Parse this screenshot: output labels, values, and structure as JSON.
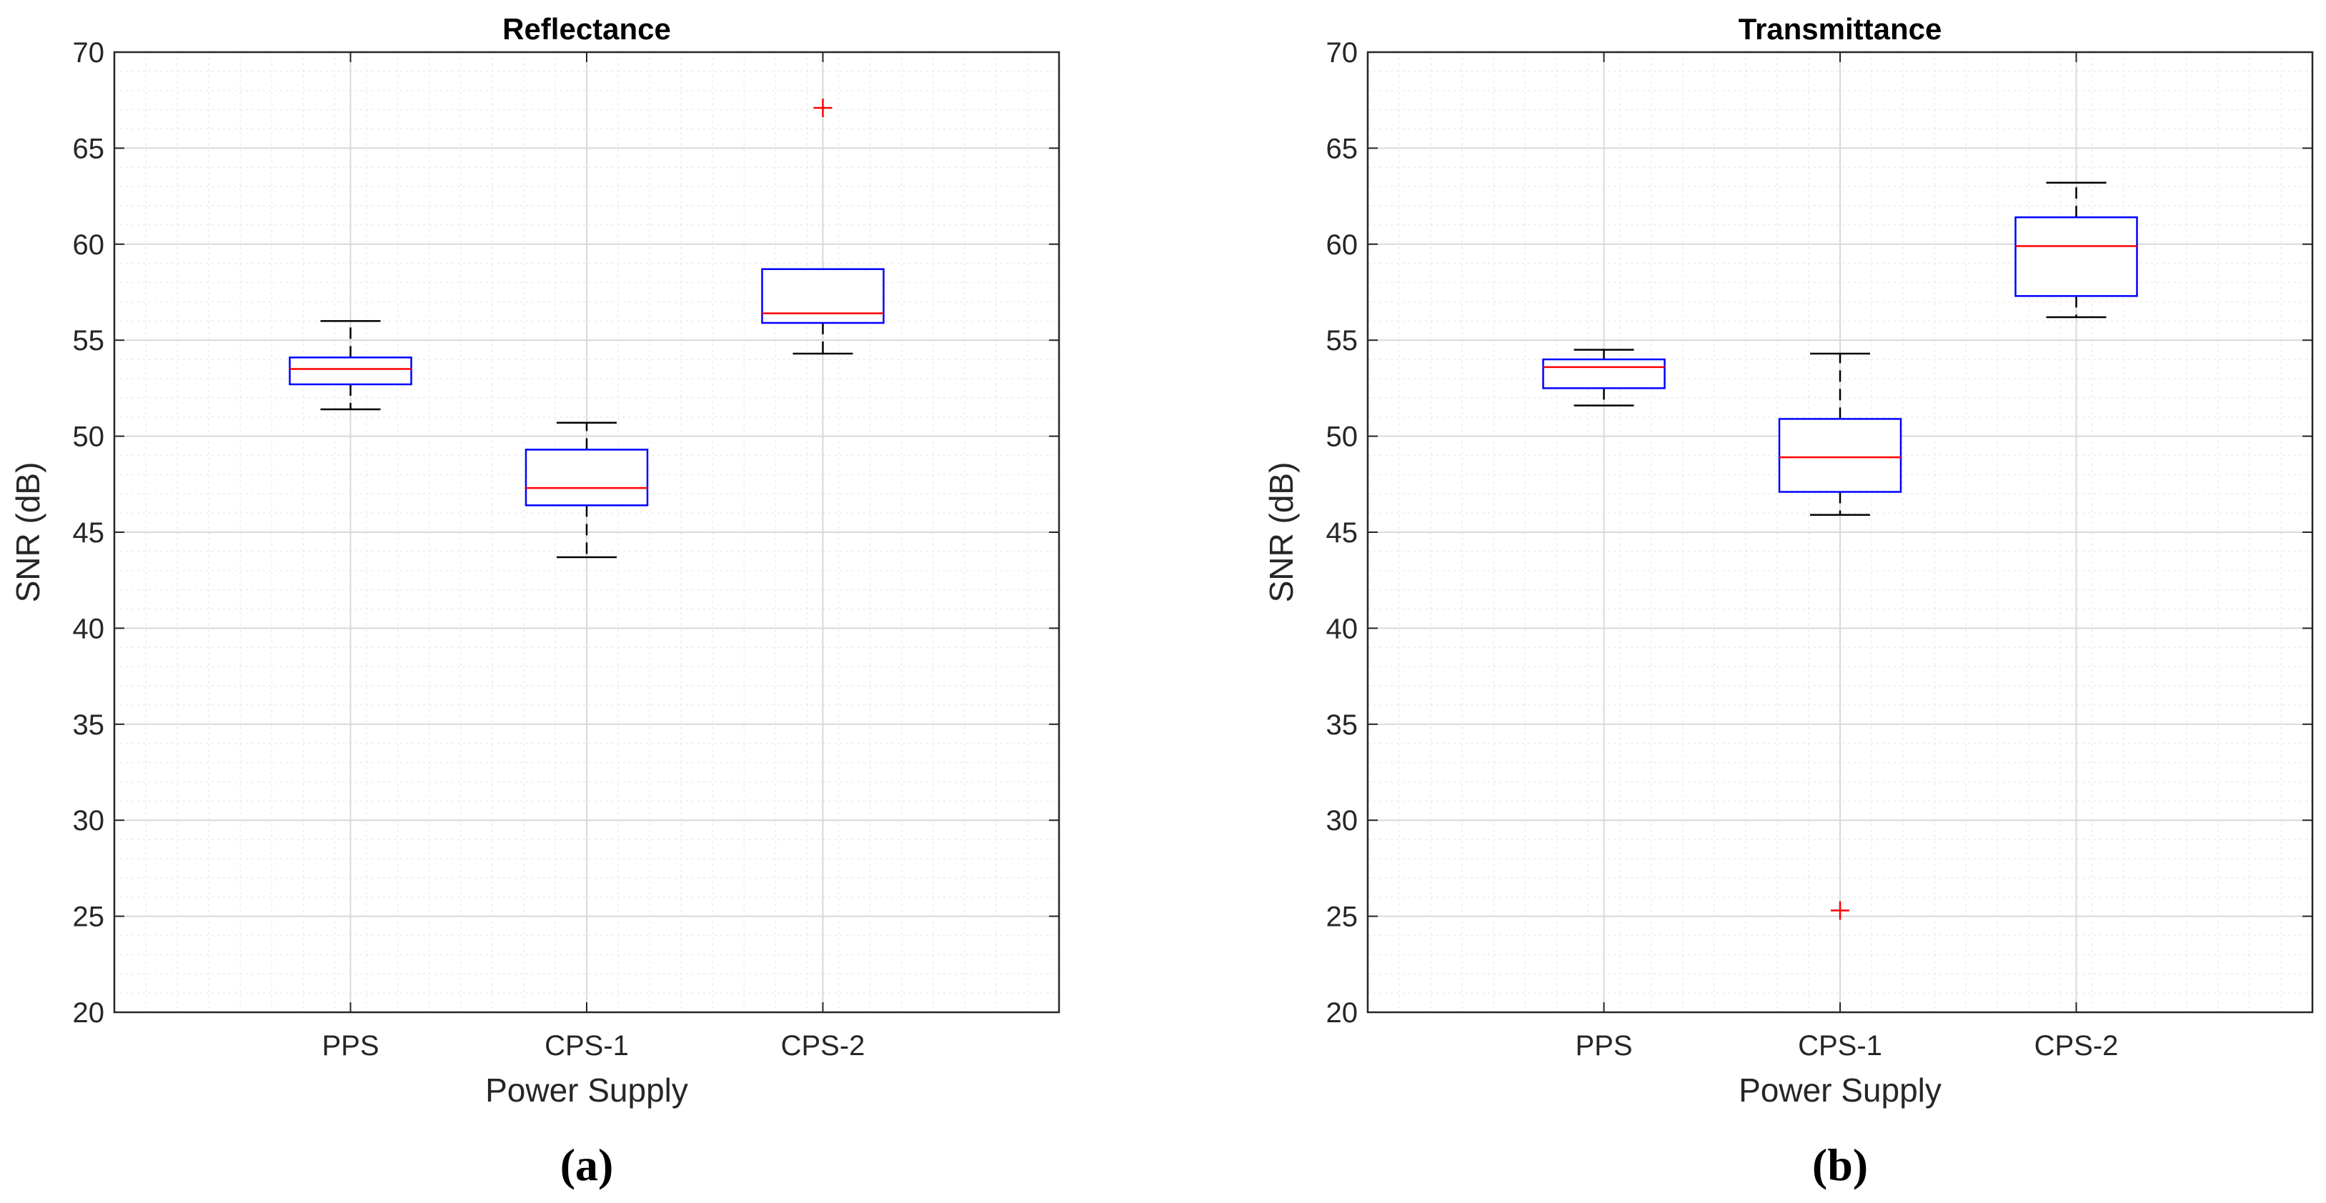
{
  "colors": {
    "box": "#0000ff",
    "median": "#ff0000",
    "whisker": "#000000",
    "outlier": "#ff0000",
    "axes": "#262626",
    "grid_major": "#d9d9d9",
    "grid_minor": "#ececec",
    "text": "#262626"
  },
  "chart_data": [
    {
      "type": "boxplot",
      "title": "Reflectance",
      "panel_label": "(a)",
      "xlabel": "Power Supply",
      "ylabel": "SNR (dB)",
      "ylim": [
        20,
        70
      ],
      "yticks": [
        20,
        25,
        30,
        35,
        40,
        45,
        50,
        55,
        60,
        65,
        70
      ],
      "yticklabels": [
        "20",
        "25",
        "30",
        "35",
        "40",
        "45",
        "50",
        "55",
        "60",
        "65",
        "70"
      ],
      "grid": true,
      "minor_grid": true,
      "categories": [
        "PPS",
        "CPS-1",
        "CPS-2"
      ],
      "boxes": [
        {
          "category": "PPS",
          "whisker_low": 51.4,
          "q1": 52.7,
          "median": 53.5,
          "q3": 54.1,
          "whisker_high": 56.0,
          "outliers": []
        },
        {
          "category": "CPS-1",
          "whisker_low": 43.7,
          "q1": 46.4,
          "median": 47.3,
          "q3": 49.3,
          "whisker_high": 50.7,
          "outliers": []
        },
        {
          "category": "CPS-2",
          "whisker_low": 54.3,
          "q1": 55.9,
          "median": 56.4,
          "q3": 58.7,
          "whisker_high": 58.7,
          "outliers": [
            67.1
          ]
        }
      ]
    },
    {
      "type": "boxplot",
      "title": "Transmittance",
      "panel_label": "(b)",
      "xlabel": "Power Supply",
      "ylabel": "SNR (dB)",
      "ylim": [
        20,
        70
      ],
      "yticks": [
        20,
        25,
        30,
        35,
        40,
        45,
        50,
        55,
        60,
        65,
        70
      ],
      "yticklabels": [
        "20",
        "25",
        "30",
        "35",
        "40",
        "45",
        "50",
        "55",
        "60",
        "65",
        "70"
      ],
      "grid": true,
      "minor_grid": true,
      "categories": [
        "PPS",
        "CPS-1",
        "CPS-2"
      ],
      "boxes": [
        {
          "category": "PPS",
          "whisker_low": 51.6,
          "q1": 52.5,
          "median": 53.6,
          "q3": 54.0,
          "whisker_high": 54.5,
          "outliers": []
        },
        {
          "category": "CPS-1",
          "whisker_low": 45.9,
          "q1": 47.1,
          "median": 48.9,
          "q3": 50.9,
          "whisker_high": 54.3,
          "outliers": [
            25.3
          ]
        },
        {
          "category": "CPS-2",
          "whisker_low": 56.2,
          "q1": 57.3,
          "median": 59.9,
          "q3": 61.4,
          "whisker_high": 63.2,
          "outliers": []
        }
      ]
    }
  ]
}
